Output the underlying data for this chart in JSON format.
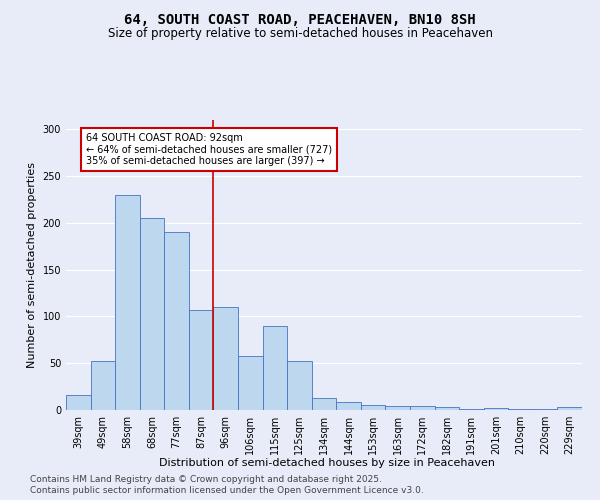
{
  "title": "64, SOUTH COAST ROAD, PEACEHAVEN, BN10 8SH",
  "subtitle": "Size of property relative to semi-detached houses in Peacehaven",
  "xlabel": "Distribution of semi-detached houses by size in Peacehaven",
  "ylabel": "Number of semi-detached properties",
  "categories": [
    "39sqm",
    "49sqm",
    "58sqm",
    "68sqm",
    "77sqm",
    "87sqm",
    "96sqm",
    "106sqm",
    "115sqm",
    "125sqm",
    "134sqm",
    "144sqm",
    "153sqm",
    "163sqm",
    "172sqm",
    "182sqm",
    "191sqm",
    "201sqm",
    "210sqm",
    "220sqm",
    "229sqm"
  ],
  "values": [
    16,
    52,
    230,
    205,
    190,
    107,
    110,
    58,
    90,
    52,
    13,
    9,
    5,
    4,
    4,
    3,
    1,
    2,
    1,
    1,
    3
  ],
  "bar_color": "#BDD7EE",
  "bar_edge_color": "#4472C4",
  "property_label": "64 SOUTH COAST ROAD: 92sqm",
  "pct_smaller": 64,
  "count_smaller": 727,
  "pct_larger": 35,
  "count_larger": 397,
  "vline_color": "#CC0000",
  "vline_position": 5.5,
  "annotation_box_color": "#CC0000",
  "background_color": "#E8ECF8",
  "plot_bg_color": "#E8ECF8",
  "ylim": [
    0,
    310
  ],
  "footer1": "Contains HM Land Registry data © Crown copyright and database right 2025.",
  "footer2": "Contains public sector information licensed under the Open Government Licence v3.0.",
  "title_fontsize": 10,
  "subtitle_fontsize": 8.5,
  "xlabel_fontsize": 8,
  "ylabel_fontsize": 8,
  "tick_fontsize": 7,
  "footer_fontsize": 6.5
}
